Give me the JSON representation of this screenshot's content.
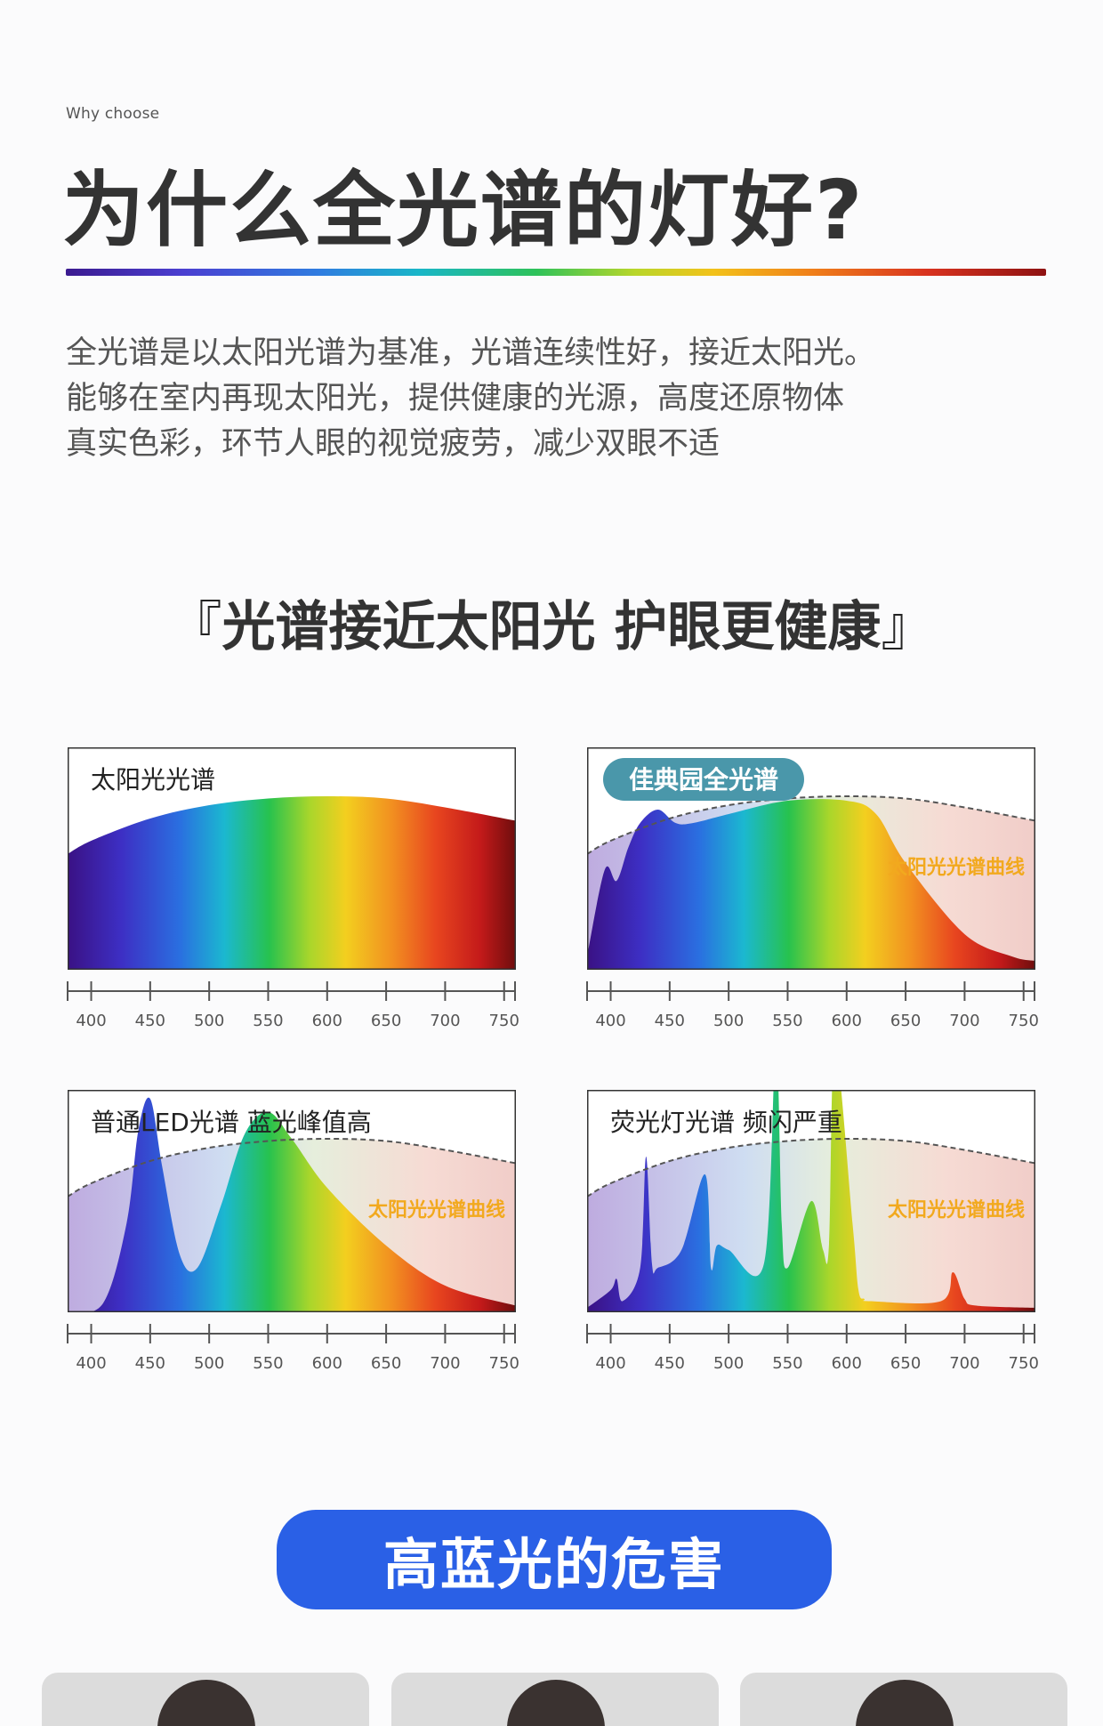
{
  "header": {
    "eyebrow": "Why choose",
    "title": "为什么全光谱的灯好?"
  },
  "intro": {
    "lines": [
      "全光谱是以太阳光谱为基准，光谱连续性好，接近太阳光。",
      "能够在室内再现太阳光，提供健康的光源，高度还原物体",
      "真实色彩，环节人眼的视觉疲劳，减少双眼不适"
    ]
  },
  "slogan": {
    "open": "『",
    "text": "光谱接近太阳光 护眼更健康",
    "close": "』"
  },
  "chart_data": [
    {
      "type": "area",
      "title": "太阳光光谱",
      "reference_label": "",
      "x": [
        380,
        400,
        450,
        500,
        550,
        600,
        650,
        700,
        760
      ],
      "series": [
        {
          "values": [
            0.52,
            0.58,
            0.68,
            0.74,
            0.77,
            0.78,
            0.77,
            0.73,
            0.67
          ]
        }
      ],
      "reference_curve": [],
      "xlim": [
        380,
        760
      ],
      "ylim": [
        0,
        1
      ],
      "ticks": [
        "400",
        "450",
        "500",
        "550",
        "600",
        "650",
        "700",
        "750"
      ],
      "tick_values": [
        400,
        450,
        500,
        550,
        600,
        650,
        700,
        750
      ]
    },
    {
      "type": "area",
      "title": "佳典园全光谱",
      "reference_label": "太阳光光谱曲线",
      "x": [
        380,
        395,
        405,
        415,
        425,
        440,
        455,
        470,
        500,
        550,
        600,
        625,
        650,
        700,
        740,
        760
      ],
      "series": [
        {
          "values": [
            0.06,
            0.45,
            0.4,
            0.55,
            0.66,
            0.72,
            0.66,
            0.66,
            0.7,
            0.76,
            0.76,
            0.7,
            0.48,
            0.16,
            0.06,
            0.04
          ]
        }
      ],
      "reference_curve": [
        0.52,
        0.58,
        0.68,
        0.74,
        0.77,
        0.78,
        0.77,
        0.73,
        0.67
      ],
      "xlim": [
        380,
        760
      ],
      "ylim": [
        0,
        1
      ],
      "ticks": [
        "400",
        "450",
        "500",
        "550",
        "600",
        "650",
        "700",
        "750"
      ],
      "tick_values": [
        400,
        450,
        500,
        550,
        600,
        650,
        700,
        750
      ]
    },
    {
      "type": "area",
      "title": "普通LED光谱 蓝光峰值高",
      "reference_label": "太阳光光谱曲线",
      "x": [
        380,
        410,
        430,
        440,
        450,
        460,
        475,
        490,
        510,
        530,
        550,
        570,
        600,
        650,
        700,
        760
      ],
      "series": [
        {
          "values": [
            0.0,
            0.04,
            0.4,
            0.82,
            0.96,
            0.66,
            0.26,
            0.2,
            0.48,
            0.8,
            0.9,
            0.78,
            0.56,
            0.3,
            0.12,
            0.03
          ]
        }
      ],
      "reference_curve": [
        0.52,
        0.58,
        0.68,
        0.74,
        0.77,
        0.78,
        0.77,
        0.73,
        0.67
      ],
      "xlim": [
        380,
        760
      ],
      "ylim": [
        0,
        1
      ],
      "ticks": [
        "400",
        "450",
        "500",
        "550",
        "600",
        "650",
        "700",
        "750"
      ],
      "tick_values": [
        400,
        450,
        500,
        550,
        600,
        650,
        700,
        750
      ]
    },
    {
      "type": "area",
      "title": "荧光灯光谱 频闪严重",
      "reference_label": "太阳光光谱曲线",
      "x": [
        380,
        400,
        405,
        410,
        425,
        430,
        435,
        440,
        460,
        480,
        485,
        490,
        500,
        530,
        540,
        545,
        550,
        570,
        580,
        585,
        590,
        605,
        610,
        615,
        620,
        680,
        690,
        700,
        710,
        760
      ],
      "series": [
        {
          "values": [
            0.02,
            0.1,
            0.15,
            0.05,
            0.2,
            0.7,
            0.22,
            0.2,
            0.28,
            0.62,
            0.2,
            0.3,
            0.28,
            0.22,
            1.2,
            0.4,
            0.2,
            0.5,
            0.28,
            0.3,
            1.2,
            0.4,
            0.1,
            0.06,
            0.05,
            0.05,
            0.18,
            0.06,
            0.03,
            0.02
          ]
        }
      ],
      "reference_curve": [
        0.52,
        0.58,
        0.68,
        0.74,
        0.77,
        0.78,
        0.77,
        0.73,
        0.67
      ],
      "xlim": [
        380,
        760
      ],
      "ylim": [
        0,
        1
      ],
      "ticks": [
        "400",
        "450",
        "500",
        "550",
        "600",
        "650",
        "700",
        "750"
      ],
      "tick_values": [
        400,
        450,
        500,
        550,
        600,
        650,
        700,
        750
      ]
    }
  ],
  "banner": {
    "label": "高蓝光的危害"
  }
}
